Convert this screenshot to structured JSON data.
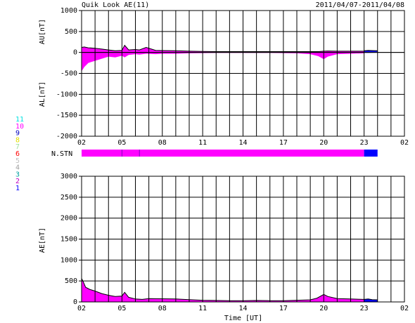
{
  "header": {
    "title": "Quik Look AE(11)",
    "date_range": "2011/04/07-2011/04/08"
  },
  "colors": {
    "magenta": "#ff00ff",
    "blue": "#0000ff",
    "grid": "#000000"
  },
  "stations_legend": [
    {
      "label": "11",
      "color": "#00e0e0"
    },
    {
      "label": "10",
      "color": "#ff00ff"
    },
    {
      "label": "9",
      "color": "#0000c0"
    },
    {
      "label": "8",
      "color": "#e0e000"
    },
    {
      "label": "7",
      "color": "#a0e0a0"
    },
    {
      "label": "6",
      "color": "#ff0000"
    },
    {
      "label": "5",
      "color": "#c0c0c0"
    },
    {
      "label": "4",
      "color": "#a0a0a0"
    },
    {
      "label": "3",
      "color": "#00a0a0"
    },
    {
      "label": "2",
      "color": "#c000c0"
    },
    {
      "label": "1",
      "color": "#0000ff"
    }
  ],
  "chart_data": [
    {
      "type": "area",
      "title": "Quik Look AE(11)",
      "ylabel_upper": "AU[nT]",
      "ylabel_lower": "AL[nT]",
      "yticks": [
        "1000",
        "500",
        "0",
        "-500",
        "-1000",
        "-1500",
        "-2000"
      ],
      "ylim": [
        -2000,
        1000
      ],
      "xlim": [
        2,
        26
      ],
      "xticks": [
        "02",
        "05",
        "08",
        "11",
        "14",
        "17",
        "20",
        "23",
        "02"
      ],
      "series": [
        {
          "color": "#ff00ff",
          "x": [
            2.0,
            2.2,
            2.5,
            3.0,
            3.5,
            4.0,
            4.5,
            5.0,
            5.2,
            5.5,
            6.0,
            6.3,
            6.8,
            7.5,
            8.0,
            9.0,
            10.0,
            11.0,
            12.0,
            13.0,
            14.0,
            15.0,
            16.0,
            17.0,
            18.0,
            19.0,
            19.6,
            20.0,
            20.3,
            21.0,
            22.0,
            23.0
          ],
          "au": [
            120,
            130,
            110,
            100,
            80,
            60,
            40,
            50,
            170,
            60,
            70,
            60,
            120,
            50,
            45,
            40,
            30,
            25,
            20,
            20,
            20,
            20,
            20,
            20,
            20,
            20,
            20,
            30,
            35,
            30,
            30,
            30
          ],
          "al": [
            -450,
            -350,
            -250,
            -200,
            -150,
            -100,
            -120,
            -80,
            -120,
            -60,
            -40,
            -50,
            -30,
            -40,
            -30,
            -30,
            -20,
            -15,
            -10,
            -10,
            -10,
            -10,
            -10,
            -15,
            -20,
            -40,
            -90,
            -160,
            -100,
            -40,
            -30,
            -20
          ]
        },
        {
          "color": "#0000ff",
          "x": [
            23.0,
            23.3,
            23.6,
            24.0
          ],
          "au": [
            40,
            50,
            45,
            40
          ],
          "al": [
            -10,
            -10,
            -8,
            -5
          ]
        }
      ]
    },
    {
      "type": "bar",
      "ylabel": "N.STN",
      "segments": [
        {
          "start": 2.0,
          "end": 23.0,
          "stations": 10,
          "color": "#ff00ff"
        },
        {
          "start": 23.0,
          "end": 24.0,
          "stations": 9,
          "color": "#0000ff"
        }
      ]
    },
    {
      "type": "area",
      "ylabel": "AE[nT]",
      "xlabel": "Time [UT]",
      "yticks": [
        "3000",
        "2500",
        "2000",
        "1500",
        "1000",
        "500",
        "0"
      ],
      "ylim": [
        0,
        3000
      ],
      "xlim": [
        2,
        26
      ],
      "xticks": [
        "02",
        "05",
        "08",
        "11",
        "14",
        "17",
        "20",
        "23",
        "02"
      ],
      "series": [
        {
          "color": "#ff00ff",
          "x": [
            2.0,
            2.1,
            2.3,
            2.6,
            3.0,
            3.5,
            4.0,
            4.5,
            5.0,
            5.2,
            5.5,
            6.0,
            6.5,
            7.0,
            8.0,
            9.0,
            10.0,
            11.0,
            12.0,
            13.0,
            14.0,
            15.0,
            16.0,
            17.0,
            18.0,
            19.0,
            19.5,
            20.0,
            20.3,
            21.0,
            22.0,
            23.0
          ],
          "values": [
            560,
            500,
            350,
            300,
            260,
            200,
            160,
            130,
            140,
            230,
            110,
            70,
            60,
            80,
            75,
            70,
            55,
            40,
            35,
            30,
            30,
            35,
            30,
            30,
            40,
            50,
            90,
            180,
            130,
            80,
            70,
            60
          ]
        },
        {
          "color": "#0000ff",
          "x": [
            23.0,
            23.3,
            23.6,
            24.0
          ],
          "values": [
            60,
            70,
            55,
            50
          ]
        }
      ]
    }
  ]
}
